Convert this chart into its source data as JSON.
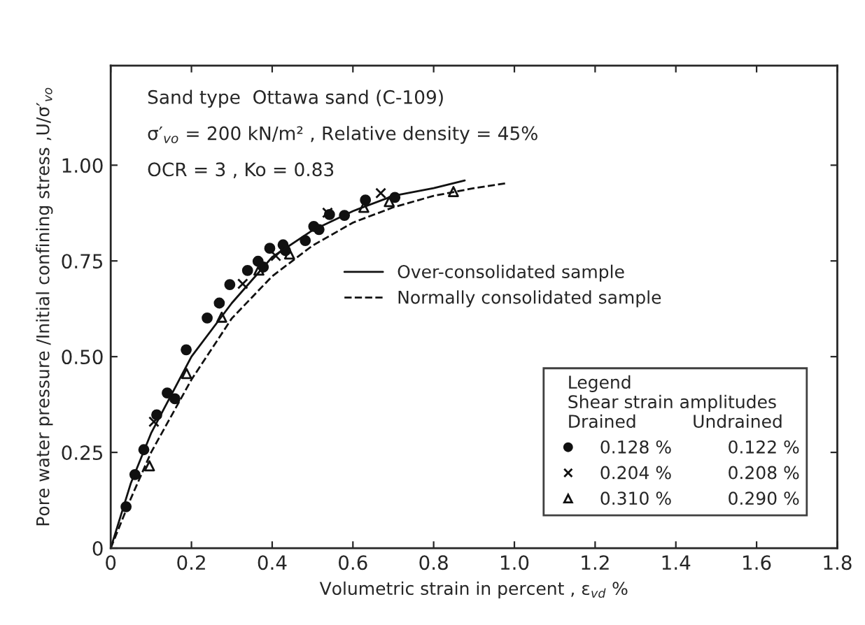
{
  "chart_data": {
    "type": "scatter",
    "xlabel": "Volumetric strain in percent , ε$_{vd}$ %",
    "ylabel": "Pore water pressure /Initial confining stress ,U/σ′$_{vo}$",
    "legend_title": "Legend\nShear strain amplitudes\nDrained          Undrained",
    "legend": "bottom right",
    "xlim": [
      0,
      1.8
    ],
    "xticks": [
      0,
      {
        "value": 0.2,
        "label": "0.2"
      },
      {
        "value": 0.4,
        "label": "0.4"
      },
      {
        "value": 0.6,
        "label": "0.6"
      },
      {
        "value": 0.8,
        "label": "0.8"
      },
      {
        "value": 1.0,
        "label": "1.0"
      },
      {
        "value": 1.2,
        "label": "1.2"
      },
      {
        "value": 1.4,
        "label": "1.4"
      },
      {
        "value": 1.6,
        "label": "1.6"
      },
      {
        "value": 1.8,
        "label": "1.8"
      }
    ],
    "ylim": [
      0,
      1.26
    ],
    "yticks": [
      0,
      {
        "value": 0.25,
        "label": "0.25"
      },
      {
        "value": 0.5,
        "label": "0.50"
      },
      {
        "value": 0.75,
        "label": "0.75"
      },
      {
        "value": 1.0,
        "label": "1.00"
      }
    ],
    "grid": false,
    "annotations": [
      "Sand type  Ottawa sand (C-109)",
      "σ′$_{vo}$ = 200 kN/m² , Relative density = 45%",
      "OCR = 3 , Ko = 0.83"
    ],
    "series": [
      {
        "name": "0.128 %          0.122 %",
        "color": "#111111",
        "marker": "circle",
        "x": [
          0.038,
          0.06,
          0.082,
          0.114,
          0.14,
          0.159,
          0.187,
          0.239,
          0.269,
          0.295,
          0.339,
          0.365,
          0.378,
          0.394,
          0.427,
          0.433,
          0.475,
          0.482,
          0.503,
          0.516,
          0.542,
          0.579,
          0.631,
          0.704
        ],
        "values": [
          0.108,
          0.192,
          0.257,
          0.348,
          0.405,
          0.39,
          0.518,
          0.601,
          0.64,
          0.688,
          0.725,
          0.749,
          0.734,
          0.783,
          0.792,
          0.777,
          null,
          0.803,
          0.84,
          0.832,
          0.871,
          0.869,
          0.909,
          0.916
        ]
      },
      {
        "name": "0.204 %          0.208 %",
        "color": "#111111",
        "marker": "cross",
        "x": [
          0.107,
          0.165,
          0.327,
          0.409,
          0.537,
          0.669
        ],
        "values": [
          0.33,
          null,
          0.69,
          0.763,
          0.876,
          0.927
        ]
      },
      {
        "name": "0.310 %          0.290 %",
        "color": "#111111",
        "marker": "triangle",
        "x": [
          0.096,
          0.188,
          0.275,
          0.367,
          0.443,
          0.627,
          0.69,
          0.849
        ],
        "values": [
          0.215,
          0.456,
          0.603,
          0.726,
          0.768,
          0.89,
          0.905,
          0.931
        ]
      },
      {
        "name": "Over-consolidated sample",
        "type": "line",
        "line_style": "solid",
        "color": "#111111",
        "x": [
          0,
          0.05,
          0.1,
          0.2,
          0.3,
          0.4,
          0.5,
          0.6,
          0.7,
          0.8,
          0.877
        ],
        "values": [
          0,
          0.17,
          0.3,
          0.5,
          0.64,
          0.76,
          0.83,
          0.88,
          0.92,
          0.94,
          0.96
        ]
      },
      {
        "name": "Normally consolidated sample",
        "type": "line",
        "line_style": "dashed",
        "color": "#111111",
        "x": [
          0,
          0.05,
          0.1,
          0.2,
          0.3,
          0.4,
          0.5,
          0.6,
          0.7,
          0.8,
          0.9,
          0.981
        ],
        "values": [
          0,
          0.13,
          0.25,
          0.44,
          0.6,
          0.71,
          0.79,
          0.85,
          0.89,
          0.92,
          0.94,
          0.953
        ]
      }
    ]
  }
}
